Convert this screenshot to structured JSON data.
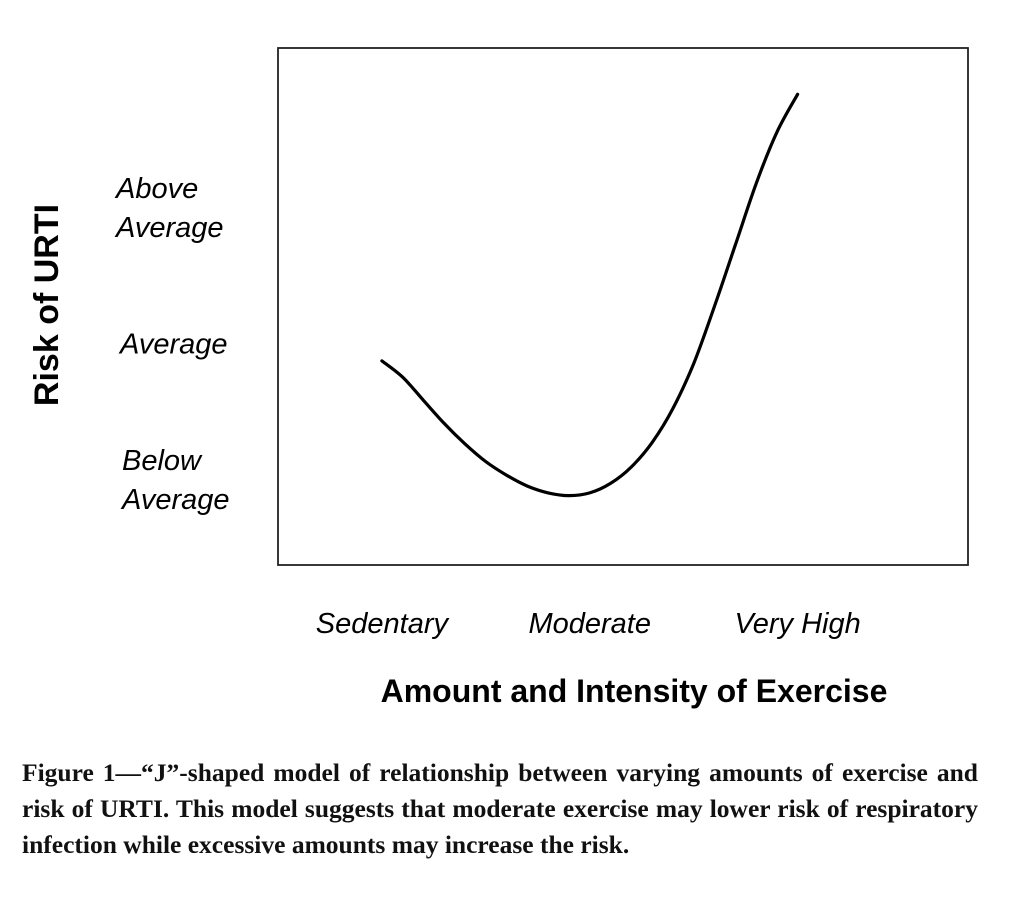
{
  "chart_data": {
    "type": "line",
    "xlabel": "Amount and Intensity of Exercise",
    "ylabel": "Risk of URTI",
    "categories": [
      "Sedentary",
      "Moderate",
      "Very High"
    ],
    "y_levels": [
      [
        "Below",
        "Average"
      ],
      [
        "Average"
      ],
      [
        "Above",
        "Average"
      ]
    ],
    "series": [
      {
        "x": [
          0.0,
          0.5,
          1.0,
          1.5,
          2.0,
          2.5,
          3.0,
          3.5,
          4.0,
          4.5,
          5.0,
          5.5,
          6.0,
          6.5,
          7.0,
          7.5,
          8.0,
          8.5,
          9.0,
          9.5,
          10.0
        ],
        "y": [
          1.9,
          1.78,
          1.61,
          1.44,
          1.29,
          1.16,
          1.06,
          0.98,
          0.93,
          0.91,
          0.93,
          1.0,
          1.12,
          1.3,
          1.55,
          1.88,
          2.3,
          2.75,
          3.2,
          3.58,
          3.86
        ]
      }
    ],
    "x_domain": [
      -2.5,
      14.1
    ],
    "ylim": [
      0.4,
      4.2
    ],
    "grid": false,
    "legend": "none"
  },
  "caption": "Figure 1—“J”-shaped model of relationship between varying amounts of exercise and risk of URTI. This model suggests that moderate exercise may lower risk of respiratory infection while excessive amounts may increase the risk."
}
